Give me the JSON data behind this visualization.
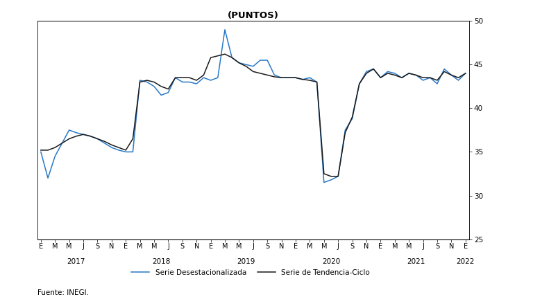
{
  "title": "(PUNTOS)",
  "ylim": [
    25.0,
    50.0
  ],
  "yticks": [
    25.0,
    30.0,
    35.0,
    40.0,
    45.0,
    50.0
  ],
  "source": "Fuente: INEGI.",
  "legend1": "Serie Desestacionalizada",
  "legend2": "Serie de Tendencia-Ciclo",
  "color_blue": "#2878C8",
  "color_dark": "#1a1a1a",
  "blue_vals": [
    35.0,
    32.0,
    34.5,
    36.0,
    37.5,
    37.2,
    37.0,
    36.8,
    36.5,
    36.0,
    35.5,
    35.2,
    35.0,
    35.0,
    43.2,
    43.0,
    42.5,
    41.5,
    41.8,
    43.5,
    43.0,
    43.0,
    42.8,
    43.5,
    43.2,
    43.5,
    49.0,
    45.8,
    45.2,
    45.0,
    44.8,
    45.5,
    45.5,
    43.8,
    43.5,
    43.5,
    43.5,
    43.3,
    43.5,
    43.0,
    31.5,
    31.8,
    32.2,
    37.5,
    38.8,
    42.8,
    44.2,
    44.5,
    43.5,
    44.2,
    44.0,
    43.5,
    44.0,
    43.8,
    43.2,
    43.5,
    42.8,
    44.5,
    43.8,
    43.2,
    44.0
  ],
  "trend_vals": [
    35.2,
    35.2,
    35.5,
    36.0,
    36.5,
    36.8,
    37.0,
    36.8,
    36.5,
    36.2,
    35.8,
    35.5,
    35.2,
    36.5,
    43.0,
    43.2,
    43.0,
    42.5,
    42.2,
    43.5,
    43.5,
    43.5,
    43.2,
    43.8,
    45.8,
    46.0,
    46.2,
    45.8,
    45.2,
    44.8,
    44.2,
    44.0,
    43.8,
    43.6,
    43.5,
    43.5,
    43.5,
    43.3,
    43.2,
    43.0,
    32.5,
    32.2,
    32.2,
    37.2,
    39.0,
    42.8,
    44.0,
    44.5,
    43.5,
    44.0,
    43.8,
    43.5,
    44.0,
    43.8,
    43.5,
    43.5,
    43.2,
    44.2,
    43.8,
    43.5,
    44.0
  ],
  "month_labels": [
    "E",
    "M",
    "M",
    "J",
    "S",
    "N",
    "E",
    "M",
    "M",
    "J",
    "S",
    "N",
    "E",
    "M",
    "M",
    "J",
    "S",
    "N",
    "E",
    "M",
    "M",
    "J",
    "S",
    "N",
    "E",
    "M",
    "M",
    "J",
    "S",
    "N",
    "E"
  ],
  "year_labels": [
    "2017",
    "2018",
    "2019",
    "2020",
    "2021",
    "2022"
  ],
  "year_tick_positions": [
    0,
    12,
    24,
    36,
    48,
    60
  ]
}
